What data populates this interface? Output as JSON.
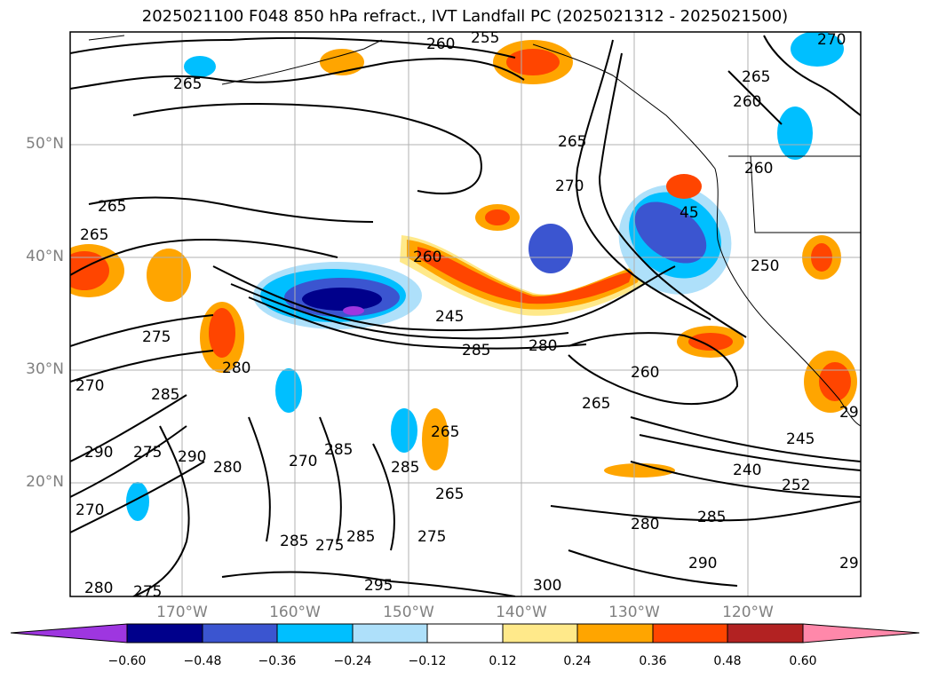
{
  "title": "2025021100 F048 850 hPa refract., IVT Landfall PC (2025021312 - 2025021500)",
  "map": {
    "lat_labels": [
      "50°N",
      "40°N",
      "30°N",
      "20°N"
    ],
    "lon_labels": [
      "170°W",
      "160°W",
      "150°W",
      "140°W",
      "130°W",
      "120°W"
    ],
    "contour_labels": [
      "260",
      "255",
      "270",
      "265",
      "260",
      "265",
      "265",
      "265",
      "270",
      "45",
      "260",
      "265",
      "260",
      "250",
      "245",
      "275",
      "285",
      "280",
      "270",
      "280",
      "260",
      "265",
      "285",
      "290",
      "275",
      "290",
      "280",
      "270",
      "285",
      "265",
      "285",
      "265",
      "245",
      "240",
      "252",
      "270",
      "280",
      "285",
      "290",
      "285",
      "275",
      "285",
      "275",
      "295",
      "300",
      "280",
      "275",
      "29",
      "29"
    ]
  },
  "colorbar": {
    "colors": [
      "#9e36e0",
      "#00008b",
      "#3b55d0",
      "#00bfff",
      "#aee0fa",
      "#ffffff",
      "#ffe98a",
      "#ffa500",
      "#ff4500",
      "#b22222",
      "#ff88aa"
    ],
    "ticks": [
      "−0.60",
      "−0.48",
      "−0.36",
      "−0.24",
      "−0.12",
      "0.12",
      "0.24",
      "0.36",
      "0.48",
      "0.60"
    ]
  }
}
